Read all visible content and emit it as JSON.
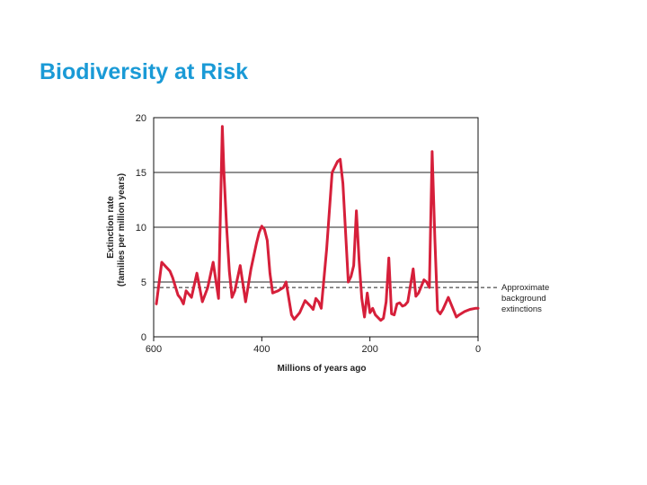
{
  "slide": {
    "title": "Biodiversity at Risk"
  },
  "chart_data": {
    "type": "line",
    "title": "",
    "xlabel": "Millions of years ago",
    "ylabel_line1": "Extinction rate",
    "ylabel_line2": "(families per million years)",
    "xlim": [
      600,
      0
    ],
    "ylim": [
      0,
      20
    ],
    "x_ticks": [
      600,
      400,
      200,
      0
    ],
    "y_ticks": [
      0,
      5,
      10,
      15,
      20
    ],
    "grid": "horizontal",
    "line_color": "#d61f3a",
    "background_line": {
      "value": 4.5,
      "label_lines": [
        "Approximate",
        "background",
        "extinctions"
      ],
      "style": "dashed"
    },
    "series": [
      {
        "x": [
          595,
          585,
          570,
          565,
          555,
          550,
          545,
          540,
          530,
          520,
          510,
          500,
          490,
          480,
          473,
          470,
          465,
          460,
          455,
          450,
          440,
          430,
          420,
          410,
          405,
          400,
          395,
          390,
          385,
          380,
          375,
          370,
          360,
          355,
          345,
          340,
          330,
          320,
          310,
          305,
          300,
          295,
          290,
          280,
          270,
          260,
          255,
          250,
          240,
          235,
          230,
          225,
          220,
          215,
          210,
          205,
          200,
          195,
          190,
          180,
          175,
          170,
          165,
          160,
          155,
          150,
          145,
          140,
          135,
          130,
          120,
          115,
          110,
          100,
          95,
          90,
          85,
          80,
          75,
          70,
          65,
          55,
          50,
          40,
          35,
          25,
          15,
          5,
          0
        ],
        "y": [
          3.0,
          6.8,
          6.0,
          5.4,
          3.8,
          3.5,
          3.0,
          4.2,
          3.6,
          5.8,
          3.2,
          4.5,
          6.8,
          3.5,
          19.2,
          15.0,
          10.0,
          6.0,
          3.6,
          4.2,
          6.5,
          3.2,
          6.2,
          8.5,
          9.5,
          10.1,
          9.8,
          8.8,
          5.8,
          4.0,
          4.1,
          4.2,
          4.5,
          5.0,
          2.0,
          1.6,
          2.2,
          3.3,
          2.8,
          2.5,
          3.5,
          3.2,
          2.6,
          8.0,
          15.0,
          16.0,
          16.2,
          14.0,
          5.0,
          5.5,
          6.5,
          11.5,
          7.0,
          3.5,
          1.8,
          4.0,
          2.2,
          2.6,
          2.0,
          1.5,
          1.7,
          3.2,
          7.2,
          2.1,
          2.0,
          3.0,
          3.1,
          2.8,
          2.9,
          3.2,
          6.2,
          3.7,
          4.0,
          5.2,
          5.0,
          4.5,
          16.9,
          9.0,
          2.4,
          2.1,
          2.5,
          3.6,
          3.0,
          1.8,
          2.0,
          2.3,
          2.5,
          2.6,
          2.6
        ]
      }
    ]
  }
}
